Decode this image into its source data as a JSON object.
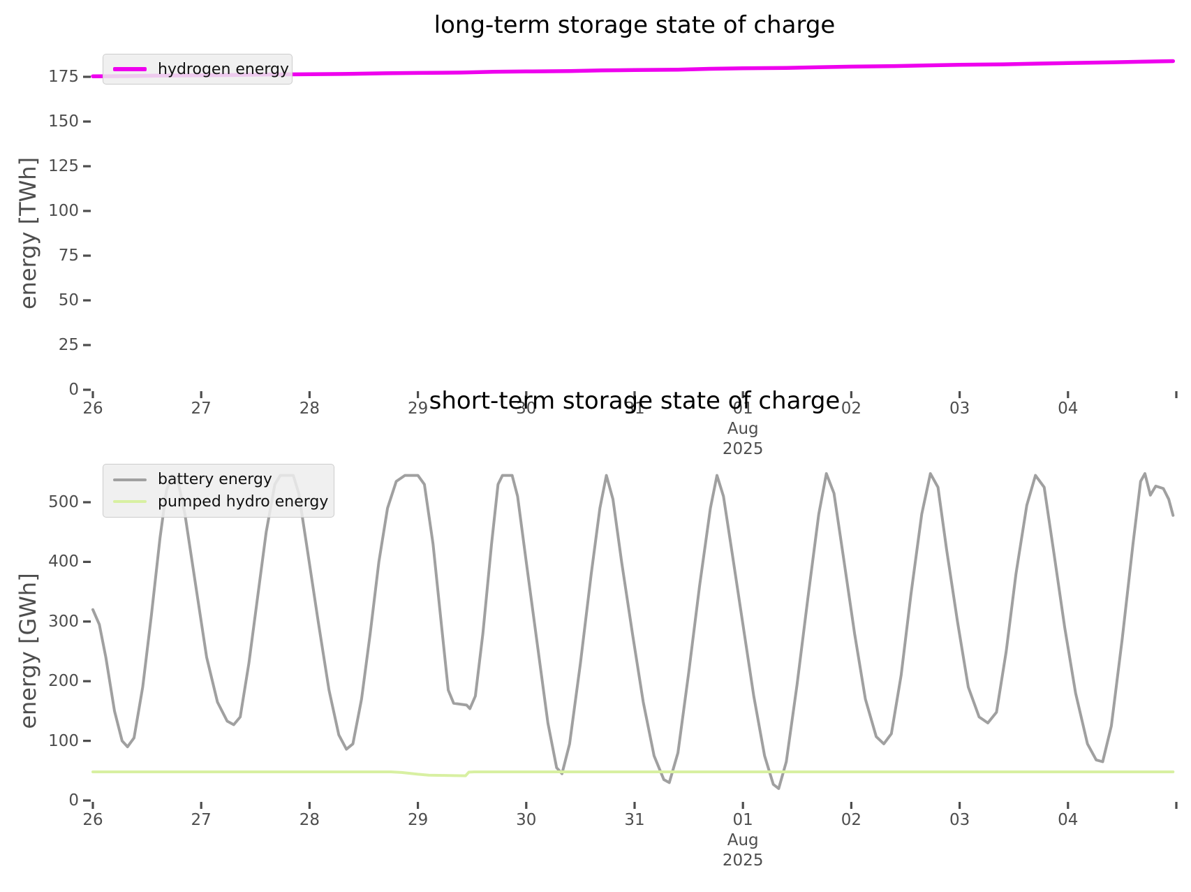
{
  "figure": {
    "background": "#ffffff",
    "tick_color": "#4d4d4d",
    "label_color": "#4d4d4d",
    "title_color": "#000000",
    "x_encoding": "day 26-31 = Jul 26-31 2025, day 32-35 = Aug 01-04 2025"
  },
  "chart_data": [
    {
      "type": "line",
      "title": "long-term storage state of charge",
      "ylabel": "energy [TWh]",
      "ylim": [
        0,
        189
      ],
      "grid": false,
      "legend_position": "upper left",
      "yticks": [
        0,
        25,
        50,
        75,
        100,
        125,
        150,
        175
      ],
      "xticks": [
        {
          "day": 26,
          "label": "26"
        },
        {
          "day": 27,
          "label": "27"
        },
        {
          "day": 28,
          "label": "28"
        },
        {
          "day": 29,
          "label": "29"
        },
        {
          "day": 30,
          "label": "30"
        },
        {
          "day": 31,
          "label": "31"
        },
        {
          "day": 32,
          "label": "01"
        },
        {
          "day": 33,
          "label": "02"
        },
        {
          "day": 34,
          "label": "03"
        },
        {
          "day": 35,
          "label": "04"
        },
        {
          "day": 36,
          "label": ""
        }
      ],
      "month_label": {
        "day": 32,
        "lines": [
          "Aug",
          "2025"
        ]
      },
      "series": [
        {
          "name": "hydrogen energy",
          "color": "#ee00ee",
          "width": 5.5,
          "points": [
            [
              26.0,
              175.3
            ],
            [
              26.3,
              175.4
            ],
            [
              26.6,
              175.7
            ],
            [
              27.0,
              175.9
            ],
            [
              27.3,
              176.0
            ],
            [
              27.6,
              176.3
            ],
            [
              28.0,
              176.5
            ],
            [
              28.3,
              176.6
            ],
            [
              28.7,
              177.0
            ],
            [
              29.0,
              177.2
            ],
            [
              29.4,
              177.4
            ],
            [
              29.7,
              177.8
            ],
            [
              30.0,
              178.0
            ],
            [
              30.4,
              178.2
            ],
            [
              30.7,
              178.6
            ],
            [
              31.0,
              178.8
            ],
            [
              31.4,
              179.0
            ],
            [
              31.7,
              179.5
            ],
            [
              32.0,
              179.8
            ],
            [
              32.4,
              180.0
            ],
            [
              32.7,
              180.4
            ],
            [
              33.0,
              180.7
            ],
            [
              33.4,
              181.0
            ],
            [
              33.7,
              181.4
            ],
            [
              34.0,
              181.7
            ],
            [
              34.4,
              182.0
            ],
            [
              34.7,
              182.4
            ],
            [
              35.0,
              182.7
            ],
            [
              35.4,
              183.1
            ],
            [
              35.7,
              183.5
            ],
            [
              35.97,
              183.8
            ]
          ]
        }
      ]
    },
    {
      "type": "line",
      "title": "short-term storage state of charge",
      "ylabel": "energy [GWh]",
      "ylim": [
        0,
        569
      ],
      "grid": false,
      "legend_position": "upper left",
      "yticks": [
        0,
        100,
        200,
        300,
        400,
        500
      ],
      "xticks": [
        {
          "day": 26,
          "label": "26"
        },
        {
          "day": 27,
          "label": "27"
        },
        {
          "day": 28,
          "label": "28"
        },
        {
          "day": 29,
          "label": "29"
        },
        {
          "day": 30,
          "label": "30"
        },
        {
          "day": 31,
          "label": "31"
        },
        {
          "day": 32,
          "label": "01"
        },
        {
          "day": 33,
          "label": "02"
        },
        {
          "day": 34,
          "label": "03"
        },
        {
          "day": 35,
          "label": "04"
        },
        {
          "day": 36,
          "label": ""
        }
      ],
      "month_label": {
        "day": 32,
        "lines": [
          "Aug",
          "2025"
        ]
      },
      "series": [
        {
          "name": "battery energy",
          "color": "#a0a0a0",
          "width": 4,
          "points": [
            [
              26.0,
              320
            ],
            [
              26.06,
              295
            ],
            [
              26.12,
              240
            ],
            [
              26.2,
              150
            ],
            [
              26.27,
              100
            ],
            [
              26.32,
              90
            ],
            [
              26.38,
              105
            ],
            [
              26.46,
              190
            ],
            [
              26.54,
              310
            ],
            [
              26.62,
              440
            ],
            [
              26.68,
              520
            ],
            [
              26.73,
              545
            ],
            [
              26.78,
              540
            ],
            [
              26.85,
              480
            ],
            [
              26.95,
              360
            ],
            [
              27.05,
              240
            ],
            [
              27.15,
              165
            ],
            [
              27.24,
              133
            ],
            [
              27.3,
              127
            ],
            [
              27.36,
              140
            ],
            [
              27.44,
              230
            ],
            [
              27.52,
              340
            ],
            [
              27.6,
              450
            ],
            [
              27.68,
              530
            ],
            [
              27.73,
              545
            ],
            [
              27.85,
              545
            ],
            [
              27.9,
              515
            ],
            [
              27.98,
              420
            ],
            [
              28.08,
              300
            ],
            [
              28.18,
              185
            ],
            [
              28.27,
              110
            ],
            [
              28.34,
              86
            ],
            [
              28.4,
              95
            ],
            [
              28.48,
              170
            ],
            [
              28.56,
              280
            ],
            [
              28.64,
              400
            ],
            [
              28.72,
              490
            ],
            [
              28.8,
              535
            ],
            [
              28.88,
              545
            ],
            [
              29.0,
              545
            ],
            [
              29.06,
              530
            ],
            [
              29.14,
              430
            ],
            [
              29.22,
              290
            ],
            [
              29.28,
              185
            ],
            [
              29.33,
              163
            ],
            [
              29.45,
              160
            ],
            [
              29.48,
              154
            ],
            [
              29.53,
              175
            ],
            [
              29.6,
              280
            ],
            [
              29.68,
              430
            ],
            [
              29.74,
              530
            ],
            [
              29.78,
              545
            ],
            [
              29.87,
              545
            ],
            [
              29.92,
              510
            ],
            [
              30.0,
              400
            ],
            [
              30.1,
              265
            ],
            [
              30.2,
              130
            ],
            [
              30.28,
              55
            ],
            [
              30.33,
              45
            ],
            [
              30.4,
              95
            ],
            [
              30.5,
              230
            ],
            [
              30.6,
              380
            ],
            [
              30.68,
              490
            ],
            [
              30.74,
              545
            ],
            [
              30.8,
              505
            ],
            [
              30.88,
              400
            ],
            [
              30.98,
              280
            ],
            [
              31.08,
              165
            ],
            [
              31.18,
              75
            ],
            [
              31.27,
              35
            ],
            [
              31.32,
              30
            ],
            [
              31.4,
              80
            ],
            [
              31.5,
              215
            ],
            [
              31.6,
              360
            ],
            [
              31.7,
              490
            ],
            [
              31.76,
              545
            ],
            [
              31.82,
              510
            ],
            [
              31.9,
              415
            ],
            [
              32.0,
              295
            ],
            [
              32.1,
              175
            ],
            [
              32.2,
              75
            ],
            [
              32.28,
              27
            ],
            [
              32.33,
              20
            ],
            [
              32.4,
              65
            ],
            [
              32.5,
              195
            ],
            [
              32.6,
              340
            ],
            [
              32.7,
              480
            ],
            [
              32.77,
              548
            ],
            [
              32.84,
              515
            ],
            [
              32.93,
              405
            ],
            [
              33.03,
              280
            ],
            [
              33.13,
              170
            ],
            [
              33.23,
              107
            ],
            [
              33.3,
              95
            ],
            [
              33.37,
              112
            ],
            [
              33.46,
              210
            ],
            [
              33.55,
              345
            ],
            [
              33.65,
              480
            ],
            [
              33.73,
              548
            ],
            [
              33.8,
              525
            ],
            [
              33.88,
              420
            ],
            [
              33.98,
              300
            ],
            [
              34.08,
              190
            ],
            [
              34.18,
              140
            ],
            [
              34.26,
              130
            ],
            [
              34.34,
              148
            ],
            [
              34.43,
              250
            ],
            [
              34.52,
              380
            ],
            [
              34.62,
              495
            ],
            [
              34.7,
              545
            ],
            [
              34.78,
              525
            ],
            [
              34.87,
              415
            ],
            [
              34.97,
              290
            ],
            [
              35.07,
              180
            ],
            [
              35.18,
              95
            ],
            [
              35.26,
              68
            ],
            [
              35.32,
              65
            ],
            [
              35.4,
              125
            ],
            [
              35.5,
              270
            ],
            [
              35.6,
              430
            ],
            [
              35.67,
              535
            ],
            [
              35.71,
              548
            ],
            [
              35.76,
              512
            ],
            [
              35.81,
              527
            ],
            [
              35.88,
              523
            ],
            [
              35.93,
              505
            ],
            [
              35.97,
              478
            ]
          ]
        },
        {
          "name": "pumped hydro energy",
          "color": "#d8f0a2",
          "width": 4,
          "points": [
            [
              26.0,
              48
            ],
            [
              28.75,
              48
            ],
            [
              28.85,
              47
            ],
            [
              29.0,
              44
            ],
            [
              29.1,
              42.5
            ],
            [
              29.25,
              42
            ],
            [
              29.44,
              41.5
            ],
            [
              29.47,
              47.5
            ],
            [
              29.52,
              48
            ],
            [
              35.97,
              48
            ]
          ]
        }
      ]
    }
  ]
}
